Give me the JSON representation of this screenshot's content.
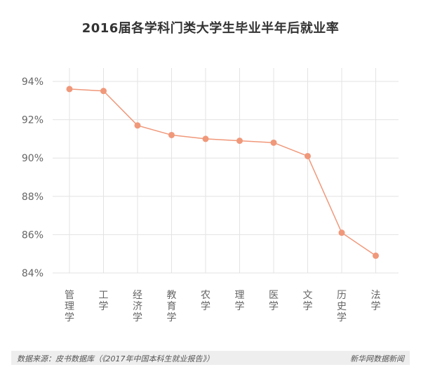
{
  "chart_data": {
    "type": "line",
    "title": "2016届各学科门类大学生毕业半年后就业率",
    "categories": [
      "管理学",
      "工学",
      "经济学",
      "教育学",
      "农学",
      "理学",
      "医学",
      "文学",
      "历史学",
      "法学"
    ],
    "series": [
      {
        "values": [
          93.6,
          93.5,
          91.7,
          91.2,
          91.0,
          90.9,
          90.8,
          90.1,
          86.1,
          84.9
        ]
      }
    ],
    "yticks": [
      "84%",
      "86%",
      "88%",
      "90%",
      "92%",
      "94%"
    ],
    "ylim": [
      84,
      94
    ],
    "grid": true,
    "line_color": "#f0987a"
  },
  "footer": {
    "source": "数据来源：皮书数据库（《2017年中国本科生就业报告》）",
    "brand": "新华网数据新闻"
  }
}
